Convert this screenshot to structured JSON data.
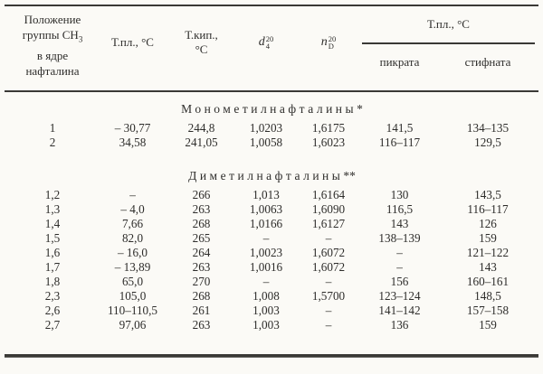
{
  "page": {
    "background": "#fbfaf6",
    "ink": "#2e2d2b",
    "rule_color": "#3a3936"
  },
  "table": {
    "header": {
      "position": {
        "line1": "Положение",
        "line2_pre": "группы CH",
        "line2_sub": "3",
        "line3": "в ядре",
        "line4": "нафталина"
      },
      "melting_point": "Т.пл., °C",
      "boiling_point_line1": "Т.кип.,",
      "boiling_point_line2": "°C",
      "density": {
        "symbol": "d",
        "sup": "20",
        "sub": "4"
      },
      "refractive": {
        "symbol": "n",
        "sup": "20",
        "sub": "D"
      },
      "derivatives_span": "Т.пл., °C",
      "picrate": "пикрата",
      "styphnate": "стифната"
    },
    "sections": [
      {
        "title": "Монометилнафталины",
        "marker": "*",
        "rows": [
          [
            "1",
            "– 30,77",
            "244,8",
            "1,0203",
            "1,6175",
            "141,5",
            "134–135"
          ],
          [
            "2",
            "34,58",
            "241,05",
            "1,0058",
            "1,6023",
            "116–117",
            "129,5"
          ]
        ]
      },
      {
        "title": "Диметилнафталины",
        "marker": "**",
        "rows": [
          [
            "1,2",
            "–",
            "266",
            "1,013",
            "1,6164",
            "130",
            "143,5"
          ],
          [
            "1,3",
            "– 4,0",
            "263",
            "1,0063",
            "1,6090",
            "116,5",
            "116–117"
          ],
          [
            "1,4",
            "7,66",
            "268",
            "1,0166",
            "1,6127",
            "143",
            "126"
          ],
          [
            "1,5",
            "82,0",
            "265",
            "–",
            "–",
            "138–139",
            "159"
          ],
          [
            "1,6",
            "– 16,0",
            "264",
            "1,0023",
            "1,6072",
            "–",
            "121–122"
          ],
          [
            "1,7",
            "– 13,89",
            "263",
            "1,0016",
            "1,6072",
            "–",
            "143"
          ],
          [
            "1,8",
            "65,0",
            "270",
            "–",
            "–",
            "156",
            "160–161"
          ],
          [
            "2,3",
            "105,0",
            "268",
            "1,008",
            "1,5700",
            "123–124",
            "148,5"
          ],
          [
            "2,6",
            "110–110,5",
            "261",
            "1,003",
            "–",
            "141–142",
            "157–158"
          ],
          [
            "2,7",
            "97,06",
            "263",
            "1,003",
            "–",
            "136",
            "159"
          ]
        ]
      }
    ]
  }
}
